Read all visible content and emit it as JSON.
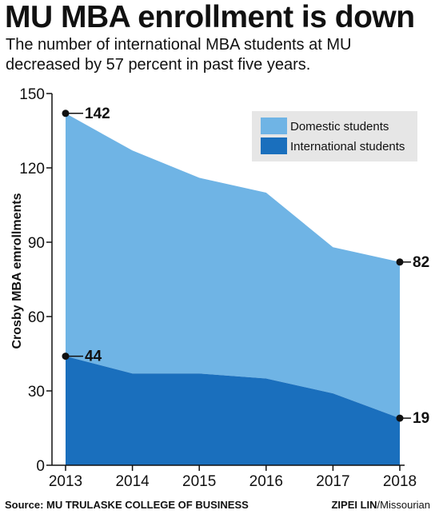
{
  "title": "MU MBA enrollment is down",
  "subtitle": "The number of international MBA students at MU decreased by 57 percent in past five years.",
  "footer": {
    "source": "Source: MU TRULASKE COLLEGE OF BUSINESS",
    "credit_name": "ZIPEI LIN",
    "credit_outlet": "/Missourian"
  },
  "colors": {
    "domestic": "#6fb4e5",
    "international": "#1a6fbd",
    "legend_bg": "#e6e6e6"
  },
  "chart_data": {
    "type": "area",
    "stacked": true,
    "title": "MU MBA enrollment is down",
    "ylabel": "Crosby MBA emrollments",
    "x": [
      2013,
      2014,
      2015,
      2016,
      2017,
      2018
    ],
    "series": [
      {
        "name": "International students",
        "values": [
          44,
          37,
          37,
          35,
          29,
          19
        ]
      },
      {
        "name": "Domestic students",
        "values": [
          98,
          90,
          79,
          75,
          59,
          63
        ]
      }
    ],
    "totals": [
      142,
      127,
      116,
      110,
      88,
      82
    ],
    "ylim": [
      0,
      150
    ],
    "yticks": [
      0,
      30,
      60,
      90,
      120,
      150
    ],
    "legend_position": "top-right",
    "annotations": [
      {
        "x": 2013,
        "y": 142,
        "label": "142"
      },
      {
        "x": 2013,
        "y": 44,
        "label": "44"
      },
      {
        "x": 2018,
        "y": 82,
        "label": "82"
      },
      {
        "x": 2018,
        "y": 19,
        "label": "19"
      }
    ]
  }
}
